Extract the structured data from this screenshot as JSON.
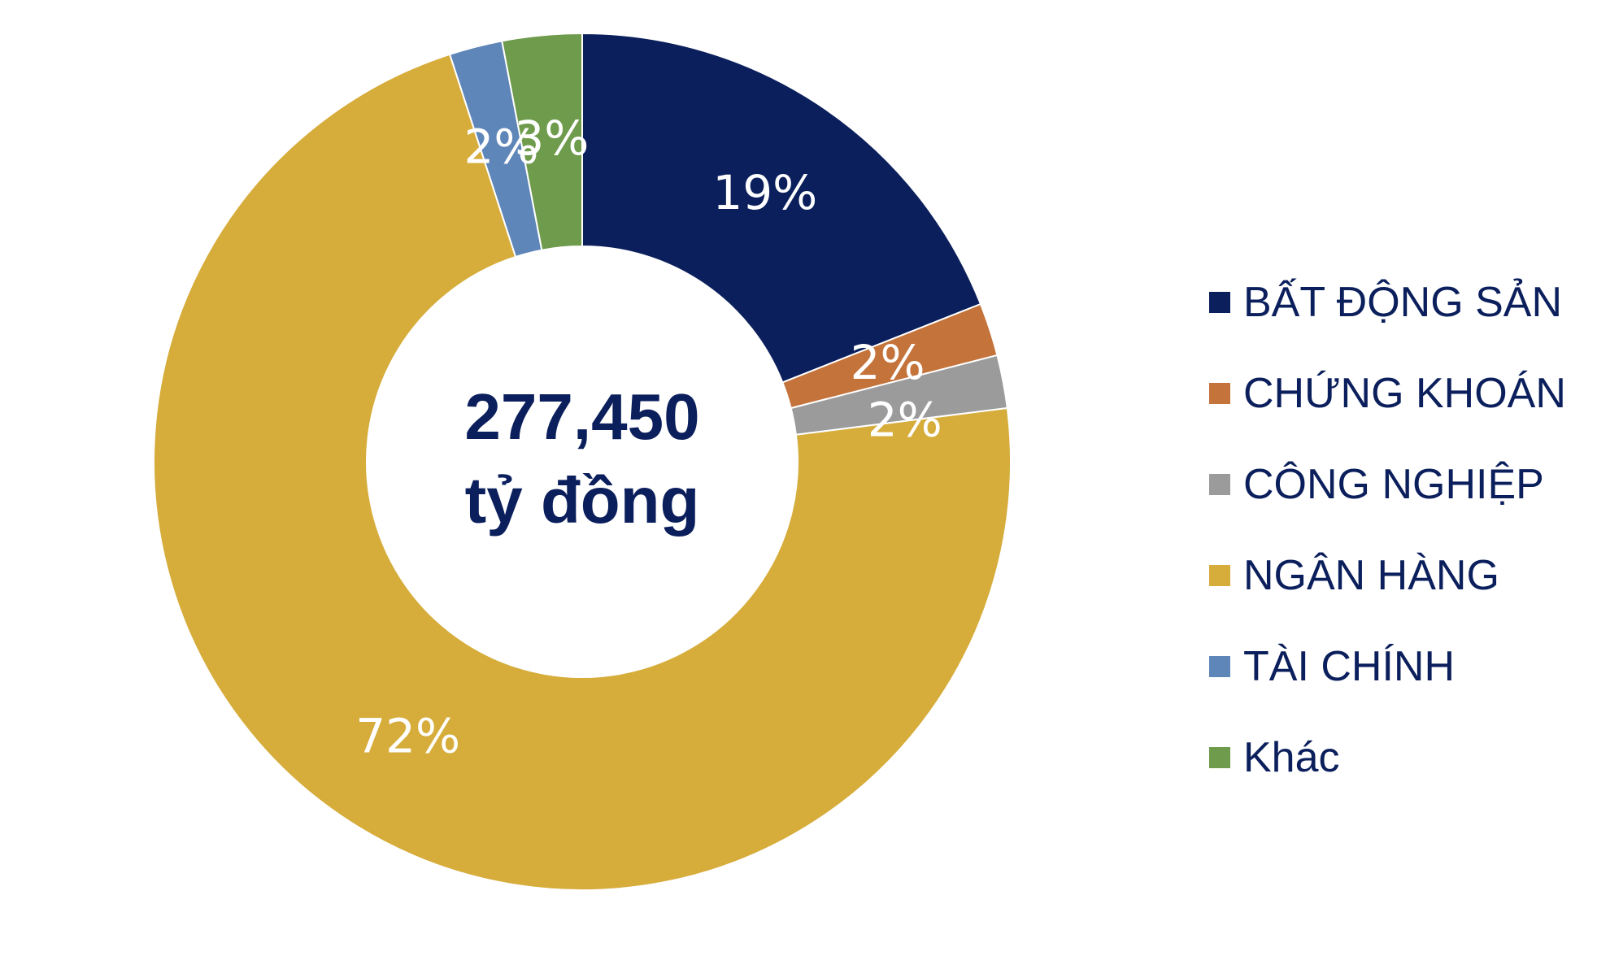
{
  "chart_data": {
    "type": "pie",
    "variant": "donut",
    "center": {
      "value": "277,450",
      "unit": "tỷ đồng"
    },
    "categories": [
      "BẤT ĐỘNG SẢN",
      "CHỨNG KHOÁN",
      "CÔNG NGHIỆP",
      "NGÂN HÀNG",
      "TÀI CHÍNH",
      "Khác"
    ],
    "values": [
      19,
      2,
      2,
      72,
      2,
      3
    ],
    "labels": [
      "19%",
      "2%",
      "2%",
      "72%",
      "2%",
      "3%"
    ],
    "colors": [
      "#0b1f5c",
      "#c4733b",
      "#9b9b9b",
      "#d6ac3b",
      "#5f86b8",
      "#6e9b4c"
    ],
    "legend_position": "right"
  }
}
